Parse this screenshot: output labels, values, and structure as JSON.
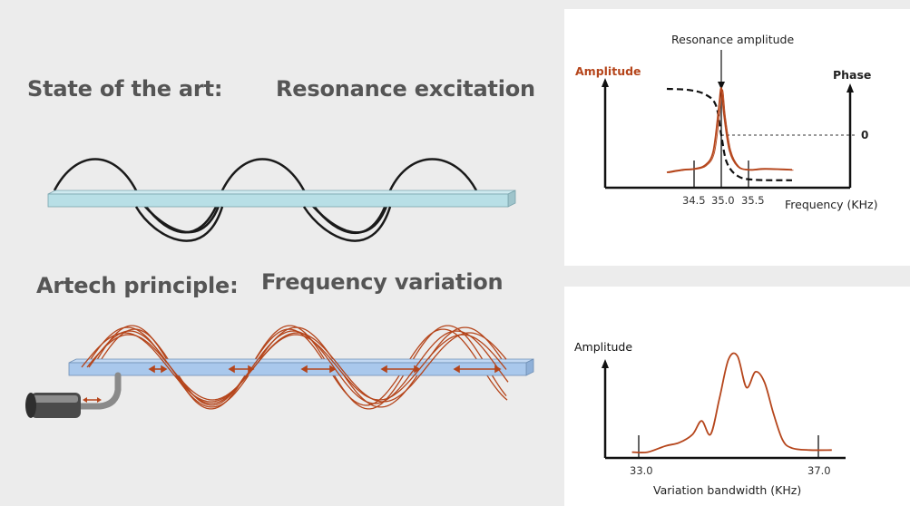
{
  "left": {
    "state_label": "State of the art:",
    "resonance_label": "Resonance excitation",
    "artech_label": "Artech principle:",
    "frequency_label": "Frequency variation"
  },
  "top_chart": {
    "annotation": "Resonance amplitude",
    "ylabel_left": "Amplitude",
    "ylabel_right": "Phase",
    "phase_zero": "0",
    "xlabel": "Frequency (KHz)",
    "ticks": [
      "34.5",
      "35.0",
      "35.5"
    ]
  },
  "bottom_chart": {
    "ylabel": "Amplitude",
    "xlabel": "Variation bandwidth (KHz)",
    "ticks": [
      "33.0",
      "37.0"
    ]
  },
  "colors": {
    "curve": "#b5451b",
    "beam_top": "#b8dfe6",
    "beam_bottom": "#a9c8ec",
    "heading": "#555555"
  },
  "chart_data": [
    {
      "type": "line",
      "xlabel": "Frequency (KHz)",
      "ylabel": "Amplitude",
      "y2label": "Phase",
      "x_ticks": [
        34.5,
        35.0,
        35.5
      ],
      "series": [
        {
          "x": [
            34.0,
            34.3,
            34.5,
            34.7,
            34.85,
            34.95,
            35.0,
            35.05,
            35.15,
            35.3,
            35.5,
            35.8,
            36.3
          ],
          "values": [
            0.05,
            0.08,
            0.09,
            0.13,
            0.28,
            0.75,
            1.0,
            0.7,
            0.3,
            0.12,
            0.08,
            0.09,
            0.08
          ]
        },
        {
          "x": [
            34.0,
            34.4,
            34.7,
            34.9,
            35.0,
            35.1,
            35.3,
            35.6,
            36.3
          ],
          "values": [
            0.85,
            0.83,
            0.75,
            0.55,
            0.0,
            -0.5,
            -0.75,
            -0.82,
            -0.83
          ]
        }
      ]
    },
    {
      "type": "line",
      "xlabel": "Variation bandwidth (KHz)",
      "ylabel": "Amplitude",
      "x_ticks": [
        33.0,
        37.0
      ],
      "series": [
        {
          "x": [
            32.85,
            33.2,
            33.6,
            33.9,
            34.2,
            34.4,
            34.6,
            34.8,
            35.0,
            35.2,
            35.4,
            35.6,
            35.8,
            36.0,
            36.2,
            36.4,
            36.8,
            37.3
          ],
          "values": [
            0.03,
            0.03,
            0.09,
            0.12,
            0.2,
            0.33,
            0.2,
            0.55,
            0.92,
            0.95,
            0.65,
            0.8,
            0.7,
            0.4,
            0.15,
            0.07,
            0.05,
            0.05
          ]
        }
      ]
    }
  ]
}
